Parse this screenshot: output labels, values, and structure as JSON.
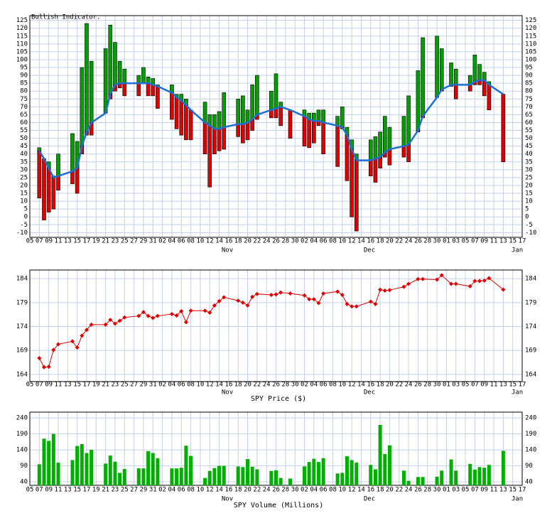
{
  "chart_data": [
    {
      "type": "bar",
      "title": "Bullish Indicator.",
      "up_color": "#00a000",
      "down_color": "#e00000",
      "line_color": "#1c6fd4",
      "grid": true,
      "months": [
        "Nov",
        "Dec",
        "Jan"
      ],
      "x": [
        2,
        3,
        4,
        5,
        6,
        9,
        10,
        11,
        12,
        13,
        16,
        17,
        18,
        19,
        20,
        23,
        24,
        25,
        26,
        27,
        30,
        31,
        32,
        33,
        34,
        37,
        38,
        39,
        40,
        41,
        44,
        45,
        46,
        47,
        48,
        51,
        52,
        53,
        55,
        58,
        59,
        60,
        61,
        62,
        65,
        66,
        67,
        68,
        69,
        72,
        73,
        74,
        75,
        76,
        79,
        80,
        82,
        83,
        86,
        87,
        89,
        90,
        93,
        94,
        95,
        96,
        97,
        100
      ],
      "high": [
        44,
        37,
        35,
        26,
        40,
        53,
        48,
        95,
        123,
        99,
        107,
        122,
        111,
        99,
        94,
        90,
        95,
        89,
        88,
        84,
        84,
        78,
        78,
        75,
        68,
        73,
        65,
        65,
        67,
        79,
        75,
        77,
        68,
        84,
        90,
        80,
        91,
        73,
        68,
        68,
        66,
        66,
        68,
        68,
        64,
        70,
        57,
        49,
        40,
        49,
        51,
        54,
        64,
        57,
        64,
        77,
        93,
        114,
        115,
        107,
        98,
        94,
        90,
        103,
        97,
        92,
        86,
        78
      ],
      "low": [
        12,
        -2,
        3,
        5,
        17,
        21,
        15,
        40,
        52,
        52,
        66,
        75,
        80,
        82,
        77,
        77,
        85,
        77,
        77,
        69,
        62,
        56,
        52,
        49,
        49,
        40,
        19,
        40,
        42,
        43,
        51,
        47,
        49,
        55,
        62,
        63,
        63,
        58,
        50,
        45,
        44,
        47,
        58,
        40,
        32,
        56,
        23,
        0,
        -9,
        26,
        22,
        31,
        38,
        33,
        38,
        35,
        54,
        63,
        76,
        80,
        83,
        75,
        80,
        84,
        84,
        77,
        68,
        35
      ],
      "line": [
        42,
        37,
        31,
        25,
        26,
        29,
        31,
        45,
        54,
        60,
        66,
        78,
        84,
        85,
        85,
        85,
        85,
        85,
        84,
        83,
        79,
        76,
        74,
        71,
        68,
        60,
        58,
        56,
        56,
        57,
        59,
        59,
        60,
        62,
        65,
        68,
        69,
        70,
        68,
        64,
        62,
        61,
        61,
        60,
        58,
        57,
        52,
        43,
        36,
        36,
        37,
        38,
        41,
        43,
        45,
        46,
        55,
        64,
        76,
        81,
        84,
        84,
        84,
        86,
        87,
        87,
        84,
        78
      ],
      "xlim": [
        0,
        104
      ],
      "xticks": [
        {
          "value": 0,
          "label": "05"
        },
        {
          "value": 2,
          "label": "07"
        },
        {
          "value": 4,
          "label": "09"
        },
        {
          "value": 6,
          "label": "11"
        },
        {
          "value": 8,
          "label": "13"
        },
        {
          "value": 10,
          "label": "15"
        },
        {
          "value": 12,
          "label": "17"
        },
        {
          "value": 14,
          "label": "19"
        },
        {
          "value": 16,
          "label": "21"
        },
        {
          "value": 18,
          "label": "23"
        },
        {
          "value": 20,
          "label": "25"
        },
        {
          "value": 22,
          "label": "27"
        },
        {
          "value": 24,
          "label": "29"
        },
        {
          "value": 26,
          "label": "31"
        },
        {
          "value": 28,
          "label": "02"
        },
        {
          "value": 30,
          "label": "04"
        },
        {
          "value": 32,
          "label": "06"
        },
        {
          "value": 34,
          "label": "08"
        },
        {
          "value": 36,
          "label": "10"
        },
        {
          "value": 38,
          "label": "12"
        },
        {
          "value": 40,
          "label": "14"
        },
        {
          "value": 42,
          "label": "16"
        },
        {
          "value": 44,
          "label": "18"
        },
        {
          "value": 46,
          "label": "20"
        },
        {
          "value": 48,
          "label": "22"
        },
        {
          "value": 50,
          "label": "24"
        },
        {
          "value": 52,
          "label": "26"
        },
        {
          "value": 54,
          "label": "28"
        },
        {
          "value": 56,
          "label": "30"
        },
        {
          "value": 58,
          "label": "02"
        },
        {
          "value": 60,
          "label": "04"
        },
        {
          "value": 62,
          "label": "06"
        },
        {
          "value": 64,
          "label": "08"
        },
        {
          "value": 66,
          "label": "10"
        },
        {
          "value": 68,
          "label": "12"
        },
        {
          "value": 70,
          "label": "14"
        },
        {
          "value": 72,
          "label": "16"
        },
        {
          "value": 74,
          "label": "18"
        },
        {
          "value": 76,
          "label": "20"
        },
        {
          "value": 78,
          "label": "22"
        },
        {
          "value": 80,
          "label": "24"
        },
        {
          "value": 82,
          "label": "26"
        },
        {
          "value": 84,
          "label": "28"
        },
        {
          "value": 86,
          "label": "30"
        },
        {
          "value": 88,
          "label": "01"
        },
        {
          "value": 90,
          "label": "03"
        },
        {
          "value": 92,
          "label": "05"
        },
        {
          "value": 94,
          "label": "07"
        },
        {
          "value": 96,
          "label": "09"
        },
        {
          "value": 98,
          "label": "11"
        },
        {
          "value": 100,
          "label": "13"
        },
        {
          "value": 102,
          "label": "15"
        },
        {
          "value": 104,
          "label": "17"
        }
      ],
      "ylim": [
        -13,
        128
      ],
      "yticks": [
        -10,
        -5,
        0,
        5,
        10,
        15,
        20,
        25,
        30,
        35,
        40,
        45,
        50,
        55,
        60,
        65,
        70,
        75,
        80,
        85,
        90,
        95,
        100,
        105,
        110,
        115,
        120,
        125
      ]
    },
    {
      "type": "line",
      "title": "SPY Price ($)",
      "color": "#e00000",
      "grid": true,
      "months": [
        "Nov",
        "Dec",
        "Jan"
      ],
      "x": [
        2,
        3,
        4,
        5,
        6,
        9,
        10,
        11,
        12,
        13,
        16,
        17,
        18,
        19,
        20,
        23,
        24,
        25,
        26,
        27,
        30,
        31,
        32,
        33,
        34,
        37,
        38,
        39,
        40,
        41,
        44,
        45,
        46,
        47,
        48,
        51,
        52,
        53,
        55,
        58,
        59,
        60,
        61,
        62,
        65,
        66,
        67,
        68,
        69,
        72,
        73,
        74,
        75,
        76,
        79,
        80,
        82,
        83,
        86,
        87,
        89,
        90,
        93,
        94,
        95,
        96,
        97,
        100
      ],
      "values": [
        167.4,
        165.5,
        165.6,
        169.1,
        170.3,
        170.9,
        169.6,
        172.1,
        173.3,
        174.4,
        174.4,
        175.4,
        174.6,
        175.2,
        175.9,
        176.2,
        177.0,
        176.2,
        175.8,
        176.2,
        176.6,
        176.3,
        177.2,
        174.9,
        177.3,
        177.3,
        176.9,
        178.4,
        179.3,
        180.1,
        179.4,
        179.0,
        178.4,
        180.2,
        180.8,
        180.6,
        180.7,
        181.1,
        180.9,
        180.5,
        179.7,
        179.7,
        178.9,
        180.9,
        181.3,
        180.6,
        178.7,
        178.2,
        178.2,
        179.2,
        178.7,
        181.7,
        181.5,
        181.6,
        182.3,
        182.9,
        183.9,
        183.9,
        183.8,
        184.7,
        182.9,
        182.9,
        182.4,
        183.5,
        183.5,
        183.6,
        184.1,
        181.7
      ],
      "xlim": [
        0,
        104
      ],
      "xticks": [
        {
          "value": 0,
          "label": "05"
        },
        {
          "value": 2,
          "label": "07"
        },
        {
          "value": 4,
          "label": "09"
        },
        {
          "value": 6,
          "label": "11"
        },
        {
          "value": 8,
          "label": "13"
        },
        {
          "value": 10,
          "label": "15"
        },
        {
          "value": 12,
          "label": "17"
        },
        {
          "value": 14,
          "label": "19"
        },
        {
          "value": 16,
          "label": "21"
        },
        {
          "value": 18,
          "label": "23"
        },
        {
          "value": 20,
          "label": "25"
        },
        {
          "value": 22,
          "label": "27"
        },
        {
          "value": 24,
          "label": "29"
        },
        {
          "value": 26,
          "label": "31"
        },
        {
          "value": 28,
          "label": "02"
        },
        {
          "value": 30,
          "label": "04"
        },
        {
          "value": 32,
          "label": "06"
        },
        {
          "value": 34,
          "label": "08"
        },
        {
          "value": 36,
          "label": "10"
        },
        {
          "value": 38,
          "label": "12"
        },
        {
          "value": 40,
          "label": "14"
        },
        {
          "value": 42,
          "label": "16"
        },
        {
          "value": 44,
          "label": "18"
        },
        {
          "value": 46,
          "label": "20"
        },
        {
          "value": 48,
          "label": "22"
        },
        {
          "value": 50,
          "label": "24"
        },
        {
          "value": 52,
          "label": "26"
        },
        {
          "value": 54,
          "label": "28"
        },
        {
          "value": 56,
          "label": "30"
        },
        {
          "value": 58,
          "label": "02"
        },
        {
          "value": 60,
          "label": "04"
        },
        {
          "value": 62,
          "label": "06"
        },
        {
          "value": 64,
          "label": "08"
        },
        {
          "value": 66,
          "label": "10"
        },
        {
          "value": 68,
          "label": "12"
        },
        {
          "value": 70,
          "label": "14"
        },
        {
          "value": 72,
          "label": "16"
        },
        {
          "value": 74,
          "label": "18"
        },
        {
          "value": 76,
          "label": "20"
        },
        {
          "value": 78,
          "label": "22"
        },
        {
          "value": 80,
          "label": "24"
        },
        {
          "value": 82,
          "label": "26"
        },
        {
          "value": 84,
          "label": "28"
        },
        {
          "value": 86,
          "label": "30"
        },
        {
          "value": 88,
          "label": "01"
        },
        {
          "value": 90,
          "label": "03"
        },
        {
          "value": 92,
          "label": "05"
        },
        {
          "value": 94,
          "label": "07"
        },
        {
          "value": 96,
          "label": "09"
        },
        {
          "value": 98,
          "label": "11"
        },
        {
          "value": 100,
          "label": "13"
        },
        {
          "value": 102,
          "label": "15"
        },
        {
          "value": 104,
          "label": "17"
        }
      ],
      "ylim": [
        162.5,
        185.8
      ],
      "yticks": [
        164,
        169,
        174,
        179,
        184
      ]
    },
    {
      "type": "bar",
      "title": "SPY Volume (Millions)",
      "color": "#00b000",
      "grid": true,
      "months": [
        "Nov",
        "Dec",
        "Jan"
      ],
      "x": [
        2,
        3,
        4,
        5,
        6,
        9,
        10,
        11,
        12,
        13,
        16,
        17,
        18,
        19,
        20,
        23,
        24,
        25,
        26,
        27,
        30,
        31,
        32,
        33,
        34,
        37,
        38,
        39,
        40,
        41,
        44,
        45,
        46,
        47,
        48,
        51,
        52,
        53,
        55,
        58,
        59,
        60,
        61,
        62,
        65,
        66,
        67,
        68,
        69,
        72,
        73,
        74,
        75,
        76,
        79,
        80,
        82,
        83,
        86,
        87,
        89,
        90,
        93,
        94,
        95,
        96,
        97,
        100
      ],
      "values": [
        95,
        175,
        168,
        190,
        100,
        108,
        152,
        158,
        130,
        140,
        97,
        122,
        103,
        68,
        80,
        82,
        82,
        136,
        130,
        114,
        82,
        82,
        84,
        153,
        121,
        52,
        74,
        83,
        90,
        90,
        88,
        86,
        111,
        87,
        79,
        74,
        76,
        52,
        50,
        88,
        102,
        112,
        102,
        114,
        66,
        68,
        120,
        108,
        100,
        93,
        79,
        218,
        127,
        154,
        75,
        43,
        55,
        55,
        56,
        75,
        110,
        75,
        96,
        78,
        86,
        84,
        93,
        137
      ],
      "xlim": [
        0,
        104
      ],
      "xticks": [
        {
          "value": 0,
          "label": "05"
        },
        {
          "value": 2,
          "label": "07"
        },
        {
          "value": 4,
          "label": "09"
        },
        {
          "value": 6,
          "label": "11"
        },
        {
          "value": 8,
          "label": "13"
        },
        {
          "value": 10,
          "label": "15"
        },
        {
          "value": 12,
          "label": "17"
        },
        {
          "value": 14,
          "label": "19"
        },
        {
          "value": 16,
          "label": "21"
        },
        {
          "value": 18,
          "label": "23"
        },
        {
          "value": 20,
          "label": "25"
        },
        {
          "value": 22,
          "label": "27"
        },
        {
          "value": 24,
          "label": "29"
        },
        {
          "value": 26,
          "label": "31"
        },
        {
          "value": 28,
          "label": "02"
        },
        {
          "value": 30,
          "label": "04"
        },
        {
          "value": 32,
          "label": "06"
        },
        {
          "value": 34,
          "label": "08"
        },
        {
          "value": 36,
          "label": "10"
        },
        {
          "value": 38,
          "label": "12"
        },
        {
          "value": 40,
          "label": "14"
        },
        {
          "value": 42,
          "label": "16"
        },
        {
          "value": 44,
          "label": "18"
        },
        {
          "value": 46,
          "label": "20"
        },
        {
          "value": 48,
          "label": "22"
        },
        {
          "value": 50,
          "label": "24"
        },
        {
          "value": 52,
          "label": "26"
        },
        {
          "value": 54,
          "label": "28"
        },
        {
          "value": 56,
          "label": "30"
        },
        {
          "value": 58,
          "label": "02"
        },
        {
          "value": 60,
          "label": "04"
        },
        {
          "value": 62,
          "label": "06"
        },
        {
          "value": 64,
          "label": "08"
        },
        {
          "value": 66,
          "label": "10"
        },
        {
          "value": 68,
          "label": "12"
        },
        {
          "value": 70,
          "label": "14"
        },
        {
          "value": 72,
          "label": "16"
        },
        {
          "value": 74,
          "label": "18"
        },
        {
          "value": 76,
          "label": "20"
        },
        {
          "value": 78,
          "label": "22"
        },
        {
          "value": 80,
          "label": "24"
        },
        {
          "value": 82,
          "label": "26"
        },
        {
          "value": 84,
          "label": "28"
        },
        {
          "value": 86,
          "label": "30"
        },
        {
          "value": 88,
          "label": "01"
        },
        {
          "value": 90,
          "label": "03"
        },
        {
          "value": 92,
          "label": "05"
        },
        {
          "value": 94,
          "label": "07"
        },
        {
          "value": 96,
          "label": "09"
        },
        {
          "value": 98,
          "label": "11"
        },
        {
          "value": 100,
          "label": "13"
        },
        {
          "value": 102,
          "label": "15"
        },
        {
          "value": 104,
          "label": "17"
        }
      ],
      "ylim": [
        29,
        258
      ],
      "yticks": [
        40,
        90,
        140,
        190,
        240
      ]
    }
  ]
}
